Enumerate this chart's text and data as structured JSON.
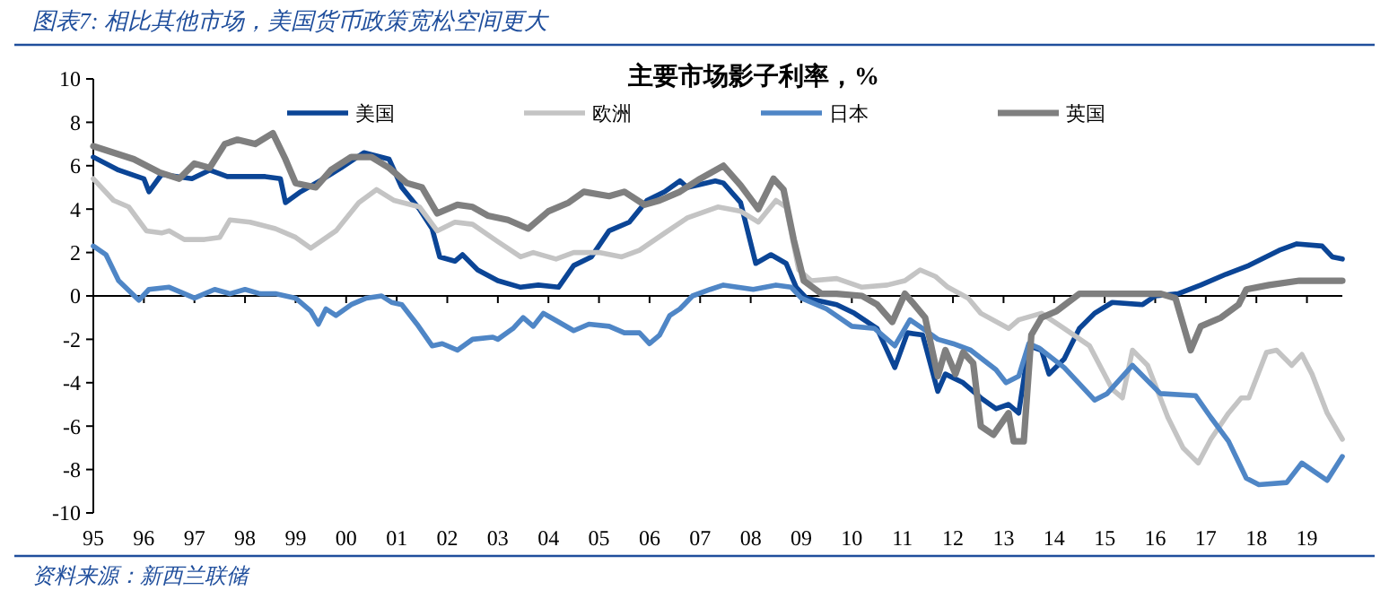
{
  "chart_data": {
    "type": "line",
    "title": "图表7: 相比其他市场，美国货币政策宽松空间更大",
    "subtitle": "主要市场影子利率，%",
    "annotations": [
      "资料来源：新西兰联储"
    ],
    "xlim": [
      1995,
      2019.7
    ],
    "xticks": [
      {
        "value": 1995,
        "label": "95"
      },
      {
        "value": 1996,
        "label": "96"
      },
      {
        "value": 1997,
        "label": "97"
      },
      {
        "value": 1998,
        "label": "98"
      },
      {
        "value": 1999,
        "label": "99"
      },
      {
        "value": 2000,
        "label": "00"
      },
      {
        "value": 2001,
        "label": "01"
      },
      {
        "value": 2002,
        "label": "02"
      },
      {
        "value": 2003,
        "label": "03"
      },
      {
        "value": 2004,
        "label": "04"
      },
      {
        "value": 2005,
        "label": "05"
      },
      {
        "value": 2006,
        "label": "06"
      },
      {
        "value": 2007,
        "label": "07"
      },
      {
        "value": 2008,
        "label": "08"
      },
      {
        "value": 2009,
        "label": "09"
      },
      {
        "value": 2010,
        "label": "10"
      },
      {
        "value": 2011,
        "label": "11"
      },
      {
        "value": 2012,
        "label": "12"
      },
      {
        "value": 2013,
        "label": "13"
      },
      {
        "value": 2014,
        "label": "14"
      },
      {
        "value": 2015,
        "label": "15"
      },
      {
        "value": 2016,
        "label": "16"
      },
      {
        "value": 2017,
        "label": "17"
      },
      {
        "value": 2018,
        "label": "18"
      },
      {
        "value": 2019,
        "label": "19"
      }
    ],
    "ylim": [
      -10,
      10
    ],
    "yticks": [
      -10,
      -8,
      -6,
      -4,
      -2,
      0,
      2,
      4,
      6,
      8,
      10
    ],
    "legend": "top",
    "marker": "none",
    "line_style": "solid",
    "series": [
      {
        "name": "美国",
        "color": "#0b4596",
        "x": [
          1995,
          1995.5,
          1996,
          1996.1,
          1996.35,
          1996.95,
          1997.3,
          1997.65,
          1998.4,
          1998.7,
          1998.8,
          1999.1,
          1999.55,
          1999.9,
          2000.35,
          2000.85,
          2001.1,
          2001.45,
          2001.7,
          2001.85,
          2002.15,
          2002.3,
          2002.6,
          2003,
          2003.45,
          2003.8,
          2004.2,
          2004.5,
          2004.85,
          2005.2,
          2005.6,
          2005.95,
          2006.3,
          2006.6,
          2006.75,
          2007.3,
          2007.46,
          2007.8,
          2008.1,
          2008.4,
          2008.7,
          2008.9,
          2009.1,
          2009.7,
          2010.05,
          2010.5,
          2010.85,
          2011.1,
          2011.4,
          2011.7,
          2011.85,
          2012.2,
          2012.55,
          2012.85,
          2013.1,
          2013.3,
          2013.5,
          2013.75,
          2013.9,
          2014.2,
          2014.5,
          2014.8,
          2015.15,
          2015.75,
          2016,
          2016.45,
          2016.9,
          2017.4,
          2017.85,
          2018.45,
          2018.8,
          2019.3,
          2019.5,
          2019.7
        ],
        "values": [
          6.4,
          5.8,
          5.4,
          4.8,
          5.6,
          5.4,
          5.8,
          5.5,
          5.5,
          5.4,
          4.3,
          4.8,
          5.4,
          5.9,
          6.6,
          6.3,
          5.0,
          4.0,
          3.1,
          1.8,
          1.6,
          1.9,
          1.2,
          0.7,
          0.4,
          0.5,
          0.4,
          1.4,
          1.8,
          3.0,
          3.4,
          4.4,
          4.8,
          5.3,
          5.0,
          5.3,
          5.2,
          4.3,
          1.5,
          1.9,
          1.5,
          0.4,
          -0.1,
          -0.4,
          -0.8,
          -1.5,
          -3.3,
          -1.7,
          -1.8,
          -4.4,
          -3.6,
          -4.0,
          -4.7,
          -5.2,
          -5.0,
          -5.4,
          -2.3,
          -2.5,
          -3.6,
          -2.9,
          -1.5,
          -0.8,
          -0.3,
          -0.4,
          0,
          0.1,
          0.5,
          1.0,
          1.4,
          2.1,
          2.4,
          2.3,
          1.8,
          1.7
        ]
      },
      {
        "name": "欧洲",
        "color": "#c4c4c4",
        "x": [
          1995,
          1995.4,
          1995.7,
          1996.05,
          1996.35,
          1996.5,
          1996.8,
          1997.2,
          1997.5,
          1997.7,
          1998.1,
          1998.6,
          1999,
          1999.3,
          1999.8,
          2000.25,
          2000.6,
          2000.95,
          2001.45,
          2001.8,
          2002.15,
          2002.5,
          2003,
          2003.45,
          2003.7,
          2004.15,
          2004.5,
          2005,
          2005.45,
          2005.8,
          2006.3,
          2006.75,
          2007.35,
          2007.8,
          2008.15,
          2008.5,
          2008.7,
          2008.95,
          2009.2,
          2009.7,
          2010.2,
          2010.7,
          2011.05,
          2011.35,
          2011.65,
          2011.9,
          2012.3,
          2012.55,
          2013.1,
          2013.3,
          2013.75,
          2014.2,
          2014.7,
          2015.15,
          2015.35,
          2015.55,
          2015.85,
          2016.25,
          2016.55,
          2016.85,
          2017.1,
          2017.45,
          2017.7,
          2017.85,
          2018.2,
          2018.4,
          2018.7,
          2018.9,
          2019.1,
          2019.4,
          2019.7
        ],
        "values": [
          5.4,
          4.4,
          4.1,
          3.0,
          2.9,
          3.0,
          2.6,
          2.6,
          2.7,
          3.5,
          3.4,
          3.1,
          2.7,
          2.2,
          3.0,
          4.3,
          4.9,
          4.4,
          4.1,
          3.0,
          3.4,
          3.3,
          2.5,
          1.8,
          2.0,
          1.7,
          2.0,
          2.0,
          1.8,
          2.1,
          2.9,
          3.6,
          4.1,
          3.9,
          3.4,
          4.4,
          4.1,
          1.2,
          0.7,
          0.8,
          0.4,
          0.5,
          0.7,
          1.2,
          0.9,
          0.4,
          -0.1,
          -0.8,
          -1.5,
          -1.1,
          -0.8,
          -1.5,
          -2.3,
          -4.3,
          -4.7,
          -2.5,
          -3.2,
          -5.6,
          -7.0,
          -7.7,
          -6.6,
          -5.4,
          -4.7,
          -4.7,
          -2.6,
          -2.5,
          -3.2,
          -2.7,
          -3.6,
          -5.4,
          -6.6
        ]
      },
      {
        "name": "日本",
        "color": "#4f86c6",
        "x": [
          1995,
          1995.25,
          1995.5,
          1995.9,
          1996.1,
          1996.5,
          1996.7,
          1997,
          1997.4,
          1997.7,
          1998,
          1998.3,
          1998.6,
          1999,
          1999.3,
          1999.45,
          1999.6,
          1999.8,
          2000.1,
          2000.4,
          2000.7,
          2000.9,
          2001.1,
          2001.4,
          2001.7,
          2001.9,
          2002.2,
          2002.5,
          2002.9,
          2003,
          2003.3,
          2003.5,
          2003.7,
          2003.9,
          2004.2,
          2004.5,
          2004.8,
          2005.2,
          2005.5,
          2005.8,
          2006,
          2006.2,
          2006.4,
          2006.6,
          2006.85,
          2007.2,
          2007.46,
          2008.05,
          2008.5,
          2008.8,
          2009,
          2009.5,
          2010,
          2010.45,
          2010.85,
          2011.15,
          2011.4,
          2011.7,
          2012,
          2012.35,
          2012.85,
          2013.05,
          2013.3,
          2013.5,
          2013.7,
          2014.2,
          2014.8,
          2015.05,
          2015.55,
          2016.1,
          2016.8,
          2017.1,
          2017.45,
          2017.8,
          2018.05,
          2018.6,
          2018.9,
          2019.4,
          2019.7
        ],
        "values": [
          2.3,
          1.9,
          0.7,
          -0.2,
          0.3,
          0.4,
          0.2,
          -0.1,
          0.3,
          0.1,
          0.3,
          0.1,
          0.1,
          -0.1,
          -0.7,
          -1.3,
          -0.6,
          -0.9,
          -0.4,
          -0.1,
          0,
          -0.3,
          -0.4,
          -1.3,
          -2.3,
          -2.2,
          -2.5,
          -2.0,
          -1.9,
          -2.0,
          -1.5,
          -1.0,
          -1.4,
          -0.8,
          -1.2,
          -1.6,
          -1.3,
          -1.4,
          -1.7,
          -1.7,
          -2.2,
          -1.8,
          -0.9,
          -0.6,
          0,
          0.3,
          0.5,
          0.3,
          0.5,
          0.4,
          -0.1,
          -0.6,
          -1.4,
          -1.5,
          -2.3,
          -1.1,
          -1.5,
          -2.0,
          -2.2,
          -2.5,
          -3.4,
          -4.0,
          -3.7,
          -2.2,
          -2.4,
          -3.3,
          -4.8,
          -4.5,
          -3.2,
          -4.5,
          -4.6,
          -5.6,
          -6.7,
          -8.4,
          -8.7,
          -8.6,
          -7.7,
          -8.5,
          -7.4
        ]
      },
      {
        "name": "英国",
        "color": "#7f7f7f",
        "x": [
          1995,
          1995.4,
          1995.8,
          1996.3,
          1996.7,
          1997,
          1997.3,
          1997.6,
          1997.85,
          1998.2,
          1998.55,
          1998.8,
          1999,
          1999.4,
          1999.7,
          2000.1,
          2000.5,
          2000.85,
          2001.2,
          2001.5,
          2001.8,
          2002.2,
          2002.5,
          2002.8,
          2003.2,
          2003.6,
          2004,
          2004.4,
          2004.7,
          2005.2,
          2005.5,
          2005.9,
          2006.2,
          2006.6,
          2007,
          2007.46,
          2007.8,
          2008.15,
          2008.45,
          2008.65,
          2008.85,
          2009.05,
          2009.4,
          2009.7,
          2010.2,
          2010.5,
          2010.8,
          2011.05,
          2011.2,
          2011.45,
          2011.7,
          2011.85,
          2012.05,
          2012.2,
          2012.4,
          2012.55,
          2012.8,
          2013.1,
          2013.2,
          2013.4,
          2013.55,
          2013.75,
          2014.05,
          2014.5,
          2015.15,
          2016.1,
          2016.4,
          2016.7,
          2016.9,
          2017.3,
          2017.65,
          2017.8,
          2018.25,
          2018.85,
          2019.7
        ],
        "values": [
          6.9,
          6.6,
          6.3,
          5.7,
          5.4,
          6.1,
          5.9,
          7.0,
          7.2,
          7.0,
          7.5,
          6.3,
          5.2,
          5.0,
          5.8,
          6.4,
          6.4,
          5.9,
          5.2,
          5.0,
          3.8,
          4.2,
          4.1,
          3.7,
          3.5,
          3.1,
          3.9,
          4.3,
          4.8,
          4.6,
          4.8,
          4.2,
          4.4,
          4.8,
          5.4,
          6.0,
          5.1,
          4.0,
          5.4,
          4.9,
          2.6,
          0.7,
          0.1,
          0.1,
          0,
          -0.4,
          -1.2,
          0.1,
          -0.3,
          -1.0,
          -3.7,
          -2.5,
          -3.6,
          -2.6,
          -3.1,
          -6.0,
          -6.4,
          -5.4,
          -6.7,
          -6.7,
          -1.8,
          -1.0,
          -0.7,
          0.1,
          0.1,
          0.1,
          -0.1,
          -2.5,
          -1.4,
          -1.0,
          -0.4,
          0.3,
          0.5,
          0.7,
          0.7
        ]
      }
    ]
  }
}
